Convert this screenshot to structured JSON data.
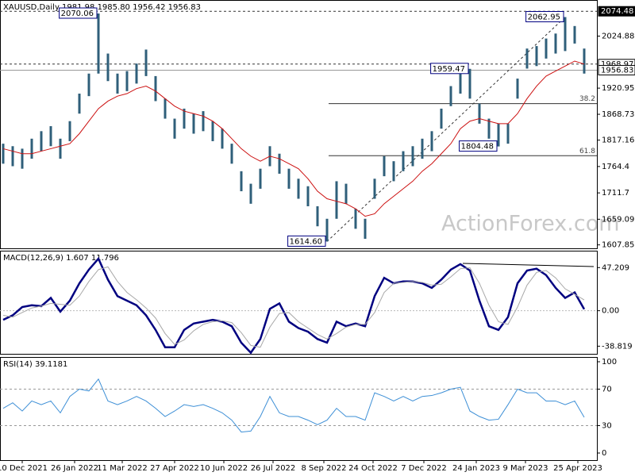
{
  "chart_data": [
    {
      "type": "ohlc",
      "title": "XAUUSD,Daily  1981.98 1985.80 1956.42 1956.83",
      "watermark": "ActionForex.com",
      "x": [
        2,
        8,
        14,
        20,
        26,
        32,
        38,
        44,
        50,
        56,
        62,
        68,
        74,
        80,
        86,
        92,
        98,
        104,
        110,
        116,
        122,
        128,
        134,
        140,
        146,
        152,
        158,
        164,
        170,
        176,
        182,
        188,
        194,
        200,
        206,
        212,
        218,
        224,
        230,
        236,
        242,
        248,
        254,
        260,
        266,
        272,
        278,
        284,
        290,
        296,
        302,
        308,
        314,
        320,
        326,
        332,
        338,
        344,
        350,
        356,
        362,
        368
      ],
      "high": [
        1810,
        1805,
        1800,
        1820,
        1835,
        1845,
        1820,
        1855,
        1910,
        1950,
        2070.06,
        1990,
        1950,
        1955,
        1970,
        1998,
        1945,
        1900,
        1860,
        1880,
        1870,
        1875,
        1855,
        1840,
        1810,
        1755,
        1730,
        1760,
        1805,
        1790,
        1760,
        1740,
        1725,
        1685,
        1660,
        1735,
        1730,
        1680,
        1660,
        1740,
        1785,
        1775,
        1795,
        1805,
        1820,
        1835,
        1880,
        1925,
        1950,
        1959.47,
        1890,
        1860,
        1850,
        1850,
        1940,
        2000,
        2005,
        2020,
        2030,
        2062.95,
        2045,
        2000
      ],
      "low": [
        1770,
        1765,
        1760,
        1780,
        1795,
        1805,
        1780,
        1815,
        1870,
        1905,
        1950,
        1935,
        1910,
        1915,
        1930,
        1945,
        1895,
        1860,
        1820,
        1840,
        1830,
        1835,
        1815,
        1800,
        1770,
        1715,
        1690,
        1720,
        1765,
        1750,
        1720,
        1700,
        1685,
        1645,
        1614.6,
        1660,
        1690,
        1640,
        1620,
        1700,
        1745,
        1735,
        1755,
        1765,
        1780,
        1795,
        1840,
        1885,
        1910,
        1900,
        1850,
        1820,
        1804.48,
        1810,
        1900,
        1960,
        1965,
        1980,
        1990,
        1995,
        2010,
        1950
      ],
      "color": "#2f5f7a",
      "series": [
        {
          "name": "MA",
          "color": "#cc1010",
          "values": [
            1800,
            1795,
            1790,
            1790,
            1795,
            1800,
            1805,
            1810,
            1830,
            1855,
            1880,
            1895,
            1905,
            1910,
            1920,
            1925,
            1915,
            1900,
            1885,
            1875,
            1870,
            1865,
            1855,
            1840,
            1820,
            1800,
            1785,
            1775,
            1785,
            1780,
            1770,
            1760,
            1740,
            1715,
            1700,
            1695,
            1690,
            1680,
            1665,
            1670,
            1690,
            1705,
            1720,
            1735,
            1755,
            1770,
            1790,
            1810,
            1840,
            1855,
            1860,
            1855,
            1850,
            1850,
            1870,
            1900,
            1925,
            1945,
            1955,
            1965,
            1975,
            1968.97
          ]
        }
      ],
      "xlim": [
        0,
        376
      ],
      "xticks": [
        {
          "value": 14,
          "label": "10 Dec 2021"
        },
        {
          "value": 47,
          "label": "26 Jan 2022"
        },
        {
          "value": 77,
          "label": "11 Mar 2022"
        },
        {
          "value": 110,
          "label": "27 Apr 2022"
        },
        {
          "value": 141,
          "label": "10 Jun 2022"
        },
        {
          "value": 172,
          "label": "26 Jul 2022"
        },
        {
          "value": 204,
          "label": "8 Sep 2022"
        },
        {
          "value": 235,
          "label": "24 Oct 2022"
        },
        {
          "value": 267,
          "label": "7 Dec 2022"
        },
        {
          "value": 300,
          "label": "24 Jan 2023"
        },
        {
          "value": 331,
          "label": "9 Mar 2023"
        },
        {
          "value": 364,
          "label": "25 Apr 2023"
        }
      ],
      "ylim": [
        1601,
        2097
      ],
      "yticks": [
        2024.88,
        1920.95,
        1868.73,
        1817.16,
        1764.4,
        1711.7,
        1659.09,
        1607.85
      ],
      "price_markers": [
        2074.48,
        1968.97,
        1956.83
      ],
      "annotations": [
        {
          "x": 62,
          "value": 2070.06
        },
        {
          "x": 206,
          "value": 1614.6,
          "label": "1614.60"
        },
        {
          "x": 296,
          "value": 1959.47
        },
        {
          "x": 314,
          "value": 1804.48
        },
        {
          "x": 356,
          "value": 2062.95
        }
      ],
      "fib_start": 207,
      "fib_levels": [
        {
          "value": 1890,
          "label": "38.2"
        },
        {
          "value": 1786,
          "label": "61.8"
        }
      ]
    },
    {
      "type": "macd",
      "title": "MACD(12,26,9) 1.607 11.796",
      "series": [
        {
          "name": "MACD",
          "color": "#000080",
          "values": [
            -10,
            -5,
            4,
            6,
            5,
            14,
            -1,
            11,
            30,
            45,
            57,
            34,
            16,
            11,
            6,
            -5,
            -21,
            -40,
            -40,
            -21,
            -14,
            -12,
            -10,
            -12,
            -17,
            -35,
            -46,
            -31,
            2,
            8,
            -12,
            -19,
            -23,
            -31,
            -35,
            -12,
            -17,
            -14,
            -17,
            16,
            36,
            30,
            32,
            32,
            30,
            25,
            34,
            45,
            51,
            44,
            11,
            -17,
            -21,
            -7,
            30,
            44,
            46,
            39,
            25,
            14,
            20,
            1.607
          ]
        },
        {
          "name": "Signal",
          "color": "#a8a8a8",
          "values": [
            -5,
            -7,
            -2,
            3,
            5,
            8,
            7,
            6,
            16,
            32,
            45,
            48,
            32,
            20,
            12,
            3,
            -8,
            -25,
            -37,
            -32,
            -22,
            -15,
            -12,
            -11,
            -13,
            -24,
            -38,
            -40,
            -18,
            -3,
            -2,
            -12,
            -19,
            -26,
            -31,
            -25,
            -18,
            -15,
            -15,
            -2,
            20,
            30,
            31,
            32,
            31,
            28,
            29,
            37,
            46,
            47,
            30,
            6,
            -12,
            -15,
            4,
            28,
            42,
            44,
            36,
            24,
            18,
            11.796
          ]
        }
      ],
      "ylim": [
        -47.2,
        65.7
      ],
      "yticks": [
        47.209,
        {
          "value": 0,
          "label": "0.00"
        },
        -38.819
      ]
    },
    {
      "type": "rsi",
      "title": "RSI(14) 39.1181",
      "series": [
        {
          "name": "RSI",
          "color": "#3d8fd6",
          "values": [
            49,
            55,
            46,
            57,
            53,
            57,
            44,
            62,
            70,
            68,
            81,
            57,
            53,
            57,
            62,
            57,
            49,
            40,
            46,
            53,
            51,
            53,
            49,
            44,
            36,
            23,
            24,
            40,
            62,
            44,
            40,
            40,
            36,
            31,
            36,
            49,
            40,
            40,
            36,
            66,
            62,
            57,
            62,
            57,
            62,
            63,
            66,
            70,
            72,
            46,
            40,
            36,
            37,
            53,
            70,
            66,
            66,
            57,
            57,
            53,
            57,
            39.1181
          ]
        }
      ],
      "ylim": [
        -7.8,
        105.2
      ],
      "yticks": [
        100,
        70,
        30,
        0
      ],
      "levels": [
        70,
        30
      ]
    }
  ]
}
